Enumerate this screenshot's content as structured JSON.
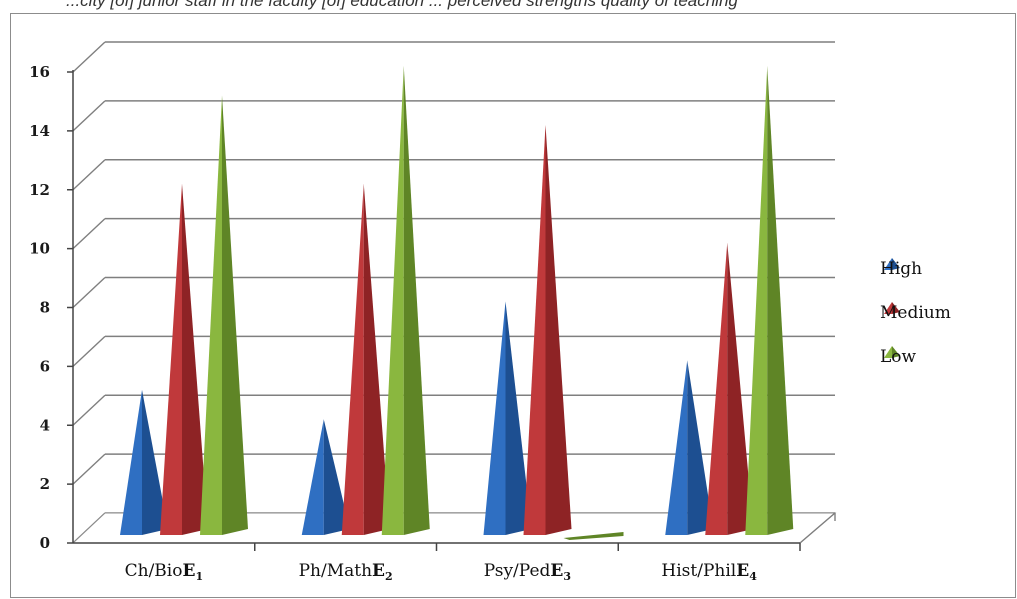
{
  "caption": "...city [of] junior staff in the faculty [of] education ... perceived strengths quality of teaching",
  "chart_data": {
    "type": "bar",
    "style": "3d-cone-columns",
    "categories": [
      {
        "name": "Ch/Bio",
        "sub": "E",
        "index": "1"
      },
      {
        "name": "Ph/Math",
        "sub": "E",
        "index": "2"
      },
      {
        "name": "Psy/Ped",
        "sub": "E",
        "index": "3"
      },
      {
        "name": "Hist/Phil",
        "sub": "E",
        "index": "4"
      }
    ],
    "series": [
      {
        "name": "High",
        "values": [
          5,
          4,
          8,
          6
        ],
        "color": "#2f6fc2",
        "shade": "#1d4f91"
      },
      {
        "name": "Medium",
        "values": [
          12,
          12,
          14,
          10
        ],
        "color": "#c0393b",
        "shade": "#8e2325"
      },
      {
        "name": "Low",
        "values": [
          15,
          16,
          0,
          16
        ],
        "color": "#8ab73f",
        "shade": "#5f8526"
      }
    ],
    "y_ticks": [
      "0",
      "2",
      "4",
      "6",
      "8",
      "10",
      "12",
      "14",
      "16"
    ],
    "ylim": [
      0,
      16
    ],
    "grid": true,
    "legend_position": "right"
  }
}
